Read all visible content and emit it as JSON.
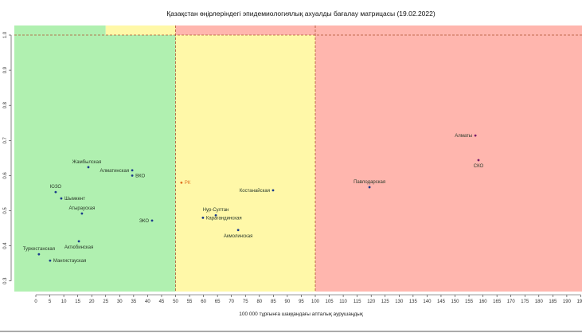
{
  "chart_data": {
    "type": "scatter",
    "title": "Қазақстан өңірлеріндегі эпидемиологиялық ахуалды бағалау матрицасы  (19.02.2022)",
    "xlabel": "100 000 тұрғынға шаққандағы апталық аурушаңдық",
    "ylabel": "",
    "xlim": [
      -8,
      198
    ],
    "ylim": [
      0.27,
      1.03
    ],
    "x_ticks": [
      0,
      5,
      10,
      15,
      20,
      25,
      30,
      35,
      40,
      45,
      50,
      55,
      60,
      65,
      70,
      75,
      80,
      85,
      90,
      95,
      100,
      105,
      110,
      115,
      120,
      125,
      130,
      135,
      140,
      145,
      150,
      155,
      160,
      165,
      170,
      175,
      180,
      185,
      190,
      195
    ],
    "y_ticks": [
      0.3,
      0.4,
      0.5,
      0.6,
      0.7,
      0.8,
      0.9,
      1.0
    ],
    "grid": false,
    "zones": [
      {
        "name": "green",
        "color": "#b0f0b0",
        "x": [
          -8,
          50
        ],
        "y": [
          0.27,
          1.0
        ]
      },
      {
        "name": "yellow",
        "color": "#fff8a8",
        "x": [
          50,
          100
        ],
        "y": [
          0.27,
          1.0
        ]
      },
      {
        "name": "red",
        "color": "#ffb6ae",
        "x": [
          100,
          198
        ],
        "y": [
          0.27,
          1.0
        ]
      },
      {
        "name": "green-top",
        "color": "#b0f0b0",
        "x": [
          -8,
          25
        ],
        "y": [
          1.0,
          1.03
        ]
      },
      {
        "name": "yellow-top",
        "color": "#fff8a8",
        "x": [
          25,
          50
        ],
        "y": [
          1.0,
          1.03
        ]
      },
      {
        "name": "red-top",
        "color": "#ffb6ae",
        "x": [
          50,
          198
        ],
        "y": [
          1.0,
          1.03
        ]
      }
    ],
    "reference_lines": {
      "x": [
        50,
        100
      ],
      "y": [
        1.0
      ]
    },
    "points": [
      {
        "label": "Жамбылская",
        "x": 18.8,
        "y": 0.624,
        "pos": "above-left",
        "color": "#1a3a8a"
      },
      {
        "label": "Алматинская",
        "x": 34.5,
        "y": 0.615,
        "pos": "left",
        "color": "#1a3a8a"
      },
      {
        "label": "ВКО",
        "x": 34.5,
        "y": 0.6,
        "pos": "right",
        "color": "#1a3a8a"
      },
      {
        "label": "ЮЗО",
        "x": 7.1,
        "y": 0.553,
        "pos": "above",
        "color": "#1a3a8a"
      },
      {
        "label": "Шымкент",
        "x": 9.1,
        "y": 0.535,
        "pos": "right",
        "color": "#1a3a8a"
      },
      {
        "label": "Атырауская",
        "x": 16.5,
        "y": 0.492,
        "pos": "above",
        "color": "#1a3a8a"
      },
      {
        "label": "ЭКО",
        "x": 41.6,
        "y": 0.472,
        "pos": "left",
        "color": "#1a3a8a"
      },
      {
        "label": "Актюбинская",
        "x": 15.4,
        "y": 0.413,
        "pos": "below",
        "color": "#1a3a8a"
      },
      {
        "label": "Туркестанская",
        "x": 1.1,
        "y": 0.376,
        "pos": "above",
        "color": "#1a3a8a"
      },
      {
        "label": "Мангистауская",
        "x": 5.1,
        "y": 0.358,
        "pos": "right",
        "color": "#1a3a8a"
      },
      {
        "label": "РК",
        "x": 52.1,
        "y": 0.58,
        "pos": "right",
        "color": "#e07020"
      },
      {
        "label": "Костанайская",
        "x": 84.9,
        "y": 0.558,
        "pos": "left",
        "color": "#1a3a8a"
      },
      {
        "label": "Нур-Султан",
        "x": 64.4,
        "y": 0.487,
        "pos": "above",
        "color": "#1a3a8a"
      },
      {
        "label": "Карагандинская",
        "x": 59.8,
        "y": 0.48,
        "pos": "right",
        "color": "#1a3a8a"
      },
      {
        "label": "Акмолинская",
        "x": 72.4,
        "y": 0.445,
        "pos": "below",
        "color": "#1a3a8a"
      },
      {
        "label": "Павлодарская",
        "x": 119.4,
        "y": 0.567,
        "pos": "above",
        "color": "#1a3a8a"
      },
      {
        "label": "Алматы",
        "x": 157.3,
        "y": 0.714,
        "pos": "left",
        "color": "#7a1a6a"
      },
      {
        "label": "СКО",
        "x": 158.4,
        "y": 0.644,
        "pos": "below",
        "color": "#7a1a6a"
      }
    ]
  }
}
